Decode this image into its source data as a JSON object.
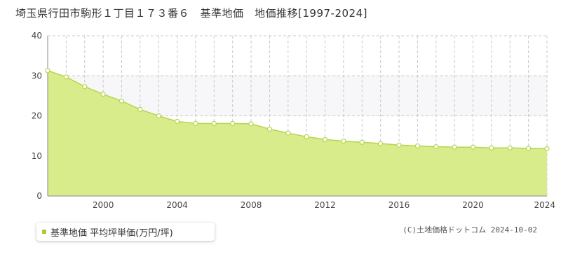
{
  "title": "埼玉県行田市駒形１丁目１７３番６　基準地価　地価推移[1997-2024]",
  "legend": {
    "label": "基準地価 平均坪単価(万円/坪)",
    "color": "#aacc33"
  },
  "copyright": "(C)土地価格ドットコム 2024-10-02",
  "colors": {
    "area_fill": "#d9ec8c",
    "line": "#b5d64a",
    "band": "#f7f6f9",
    "grid": "#c8c8c8"
  },
  "chart_data": {
    "type": "area",
    "title": "",
    "xlabel": "",
    "ylabel": "",
    "x": [
      1997,
      1998,
      1999,
      2000,
      2001,
      2002,
      2003,
      2004,
      2005,
      2006,
      2007,
      2008,
      2009,
      2010,
      2011,
      2012,
      2013,
      2014,
      2015,
      2016,
      2017,
      2018,
      2019,
      2020,
      2021,
      2022,
      2023,
      2024
    ],
    "series": [
      {
        "values": [
          31.3,
          29.7,
          27.3,
          25.4,
          23.7,
          21.6,
          20.0,
          18.6,
          18.1,
          18.1,
          18.1,
          18.0,
          16.7,
          15.7,
          14.8,
          14.1,
          13.7,
          13.4,
          13.1,
          12.7,
          12.5,
          12.3,
          12.2,
          12.2,
          12.0,
          12.0,
          11.9,
          11.8
        ]
      }
    ],
    "xlim": [
      1997,
      2024
    ],
    "ylim": [
      0,
      40
    ],
    "xticks": [
      2000,
      2004,
      2008,
      2012,
      2016,
      2020,
      2024
    ],
    "yticks": [
      0,
      10,
      20,
      30,
      40
    ],
    "grid": true,
    "legend_position": "bottom-left"
  }
}
